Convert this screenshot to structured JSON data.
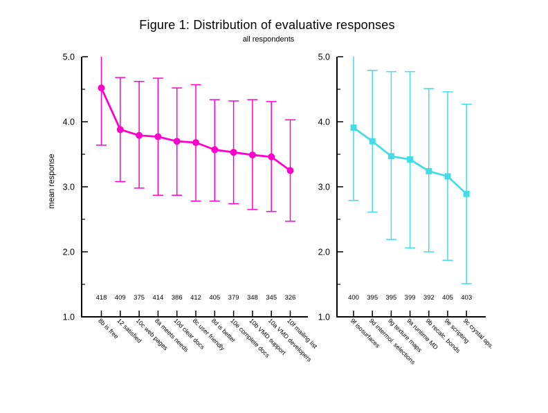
{
  "title": "Figure 1: Distribution of evaluative responses",
  "subtitle": "all respondents",
  "ylabel": "mean response",
  "colors": {
    "left_series": "#FF00CC",
    "right_series": "#46DCE6",
    "axis": "#000000"
  },
  "chart_data": [
    {
      "type": "line",
      "panel": "left",
      "marker": "circle",
      "color": "#FF00CC",
      "ylim": [
        1.0,
        5.0
      ],
      "yticks": [
        5.0,
        4.0,
        3.0,
        2.0,
        1.0
      ],
      "yticks_minor": [
        4.5,
        3.5,
        2.5,
        1.5
      ],
      "categories": [
        "8b is free",
        "12 satisfied",
        "10c web pages",
        "8a meets needs",
        "10d clear docs",
        "8c user friendly",
        "8d is better",
        "10e complete docs",
        "10b VMD support",
        "10a VMD developers",
        "10f mailing list"
      ],
      "counts": [
        418,
        409,
        375,
        414,
        386,
        412,
        405,
        379,
        348,
        345,
        326
      ],
      "means": [
        4.52,
        3.88,
        3.79,
        3.77,
        3.7,
        3.68,
        3.57,
        3.53,
        3.49,
        3.46,
        3.25
      ],
      "err_low": [
        3.64,
        3.08,
        2.98,
        2.87,
        2.87,
        2.78,
        2.78,
        2.74,
        2.65,
        2.62,
        2.47
      ],
      "err_high": [
        5.0,
        4.68,
        4.62,
        4.67,
        4.52,
        4.57,
        4.34,
        4.32,
        4.34,
        4.31,
        4.03
      ]
    },
    {
      "type": "line",
      "panel": "right",
      "marker": "square",
      "color": "#46DCE6",
      "ylim": [
        1.0,
        5.0
      ],
      "yticks": [
        5.0,
        4.0,
        3.0,
        2.0,
        1.0
      ],
      "yticks_minor": [
        4.5,
        3.5,
        2.5,
        1.5
      ],
      "categories": [
        "9f isosurfaces",
        "9d intermol. selections",
        "9g texture maps",
        "9a runtime MD",
        "9b recalc. bonds",
        "9e scripting",
        "9c crystal ops."
      ],
      "counts": [
        400,
        395,
        395,
        399,
        392,
        405,
        403
      ],
      "means": [
        3.91,
        3.7,
        3.47,
        3.42,
        3.24,
        3.16,
        2.89
      ],
      "err_low": [
        2.79,
        2.61,
        2.19,
        2.06,
        2.0,
        1.87,
        1.51
      ],
      "err_high": [
        5.0,
        4.79,
        4.77,
        4.77,
        4.51,
        4.46,
        4.27
      ]
    }
  ]
}
